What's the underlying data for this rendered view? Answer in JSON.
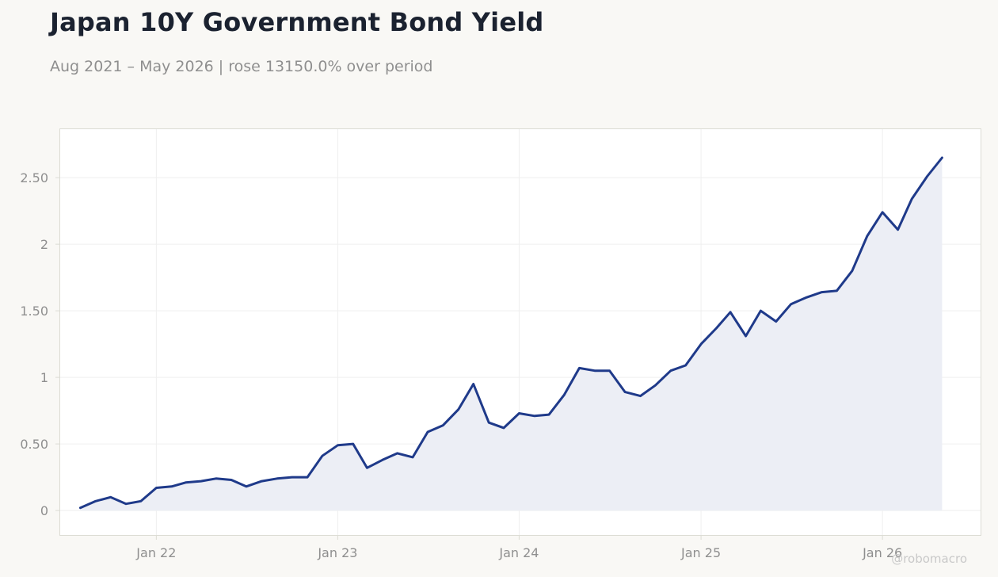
{
  "header": {
    "title": "Japan 10Y Government Bond Yield",
    "subtitle": "Aug 2021 – May 2026 | rose 13150.0% over period"
  },
  "watermark": "@robomacro",
  "colors": {
    "line": "#1f3a8a",
    "fill": "#eceef5",
    "plot_bg": "#ffffff",
    "page_bg": "#f9f8f5",
    "grid": "#efefef",
    "axis_border": "#dcdcd4",
    "tick_text": "#8f8f8f"
  },
  "chart_data": {
    "type": "area",
    "title": "Japan 10Y Government Bond Yield",
    "xlabel": "",
    "ylabel": "",
    "ylim": [
      -0.19,
      2.87
    ],
    "xlim": [
      "2021-06-20",
      "2026-07-19"
    ],
    "grid": true,
    "legend": "none",
    "x_ticks": [
      {
        "date": "2022-01-01",
        "label": "Jan 22"
      },
      {
        "date": "2023-01-01",
        "label": "Jan 23"
      },
      {
        "date": "2024-01-01",
        "label": "Jan 24"
      },
      {
        "date": "2025-01-01",
        "label": "Jan 25"
      },
      {
        "date": "2026-01-01",
        "label": "Jan 26"
      }
    ],
    "y_ticks": [
      {
        "value": 0,
        "label": "0"
      },
      {
        "value": 0.5,
        "label": "0.50"
      },
      {
        "value": 1,
        "label": "1"
      },
      {
        "value": 1.5,
        "label": "1.50"
      },
      {
        "value": 2,
        "label": "2"
      },
      {
        "value": 2.5,
        "label": "2.50"
      }
    ],
    "series": [
      {
        "name": "",
        "x": [
          "2021-08-01",
          "2021-09-01",
          "2021-10-01",
          "2021-11-01",
          "2021-12-01",
          "2022-01-01",
          "2022-02-01",
          "2022-03-01",
          "2022-04-01",
          "2022-05-01",
          "2022-06-01",
          "2022-07-01",
          "2022-08-01",
          "2022-09-01",
          "2022-10-01",
          "2022-11-01",
          "2022-12-01",
          "2023-01-01",
          "2023-02-01",
          "2023-03-01",
          "2023-04-01",
          "2023-05-01",
          "2023-06-01",
          "2023-07-01",
          "2023-08-01",
          "2023-09-01",
          "2023-10-01",
          "2023-11-01",
          "2023-12-01",
          "2024-01-01",
          "2024-02-01",
          "2024-03-01",
          "2024-04-01",
          "2024-05-01",
          "2024-06-01",
          "2024-07-01",
          "2024-08-01",
          "2024-09-01",
          "2024-10-01",
          "2024-11-01",
          "2024-12-01",
          "2025-01-01",
          "2025-02-01",
          "2025-03-01",
          "2025-04-01",
          "2025-05-01",
          "2025-06-01",
          "2025-07-01",
          "2025-08-01",
          "2025-09-01",
          "2025-10-01",
          "2025-11-01",
          "2025-12-01",
          "2026-01-01",
          "2026-02-01",
          "2026-03-01",
          "2026-04-01",
          "2026-05-01"
        ],
        "values": [
          0.02,
          0.07,
          0.1,
          0.05,
          0.07,
          0.17,
          0.18,
          0.21,
          0.22,
          0.24,
          0.23,
          0.18,
          0.22,
          0.24,
          0.25,
          0.25,
          0.41,
          0.49,
          0.5,
          0.32,
          0.38,
          0.43,
          0.4,
          0.59,
          0.64,
          0.76,
          0.95,
          0.66,
          0.62,
          0.73,
          0.71,
          0.72,
          0.87,
          1.07,
          1.05,
          1.05,
          0.89,
          0.86,
          0.94,
          1.05,
          1.09,
          1.25,
          1.37,
          1.49,
          1.31,
          1.5,
          1.42,
          1.55,
          1.6,
          1.64,
          1.65,
          1.8,
          2.06,
          2.24,
          2.11,
          2.34,
          2.51,
          2.65
        ]
      }
    ]
  }
}
